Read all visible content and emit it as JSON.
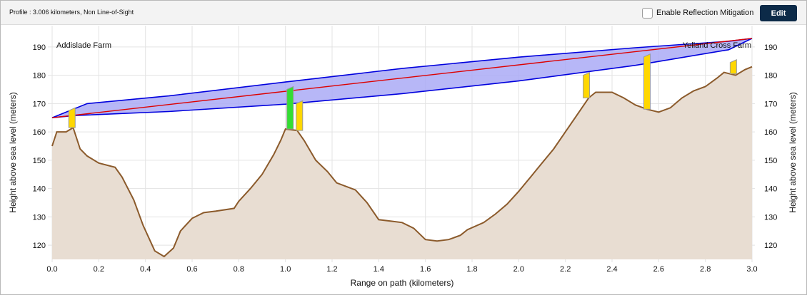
{
  "header": {
    "title": "Profile : 3.006 kilometers, Non Line-of-Sight",
    "mitigation_label": "Enable Reflection Mitigation",
    "mitigation_checked": false,
    "edit_label": "Edit"
  },
  "chart_data": {
    "type": "area",
    "xlabel": "Range on path (kilometers)",
    "ylabel": "Height above sea level (meters)",
    "ylabel_right": "Height above sea level (meters)",
    "xlim": [
      0.0,
      3.0
    ],
    "ylim": [
      115,
      196
    ],
    "x_ticks": [
      "0.0",
      "0.2",
      "0.4",
      "0.6",
      "0.8",
      "1.0",
      "1.2",
      "1.4",
      "1.6",
      "1.8",
      "2.0",
      "2.2",
      "2.4",
      "2.6",
      "2.8",
      "3.0"
    ],
    "y_ticks": [
      "120",
      "130",
      "140",
      "150",
      "160",
      "170",
      "180",
      "190"
    ],
    "grid": true,
    "annotations": {
      "left_site": "Addislade Farm",
      "right_site": "Yelland Cross Farm"
    },
    "colors": {
      "terrain_fill": "#e8ddd2",
      "terrain_line": "#8b5a2b",
      "fresnel_fill": "#aaaaf6",
      "fresnel_edge": "#0000dd",
      "path_line": "#dd0000"
    },
    "terrain": {
      "x": [
        0.0,
        0.02,
        0.06,
        0.09,
        0.12,
        0.15,
        0.2,
        0.27,
        0.3,
        0.35,
        0.39,
        0.44,
        0.48,
        0.52,
        0.55,
        0.6,
        0.65,
        0.7,
        0.78,
        0.8,
        0.85,
        0.9,
        0.95,
        0.98,
        1.0,
        1.05,
        1.08,
        1.13,
        1.18,
        1.22,
        1.3,
        1.35,
        1.4,
        1.45,
        1.5,
        1.55,
        1.6,
        1.65,
        1.7,
        1.75,
        1.78,
        1.85,
        1.9,
        1.95,
        2.0,
        2.05,
        2.1,
        2.15,
        2.2,
        2.25,
        2.3,
        2.33,
        2.4,
        2.45,
        2.5,
        2.55,
        2.6,
        2.65,
        2.7,
        2.75,
        2.8,
        2.85,
        2.88,
        2.93,
        2.97,
        3.0
      ],
      "y": [
        155,
        160,
        160,
        161.5,
        154,
        151.5,
        149,
        147.5,
        144,
        136,
        127,
        118,
        116,
        119,
        125,
        129.5,
        131.5,
        132,
        133,
        135.5,
        140,
        145,
        152,
        157,
        161,
        160.5,
        157,
        150,
        146,
        142,
        139.5,
        135,
        129,
        128.5,
        128,
        126,
        122,
        121.5,
        122,
        123.5,
        125.5,
        128,
        131,
        134.5,
        139,
        144,
        149,
        154,
        160,
        166,
        172,
        174,
        174,
        172,
        169.5,
        168,
        167,
        168.5,
        172,
        174.5,
        176,
        179,
        181,
        180,
        182,
        183
      ]
    },
    "path_line": {
      "x": [
        0.0,
        3.0
      ],
      "y": [
        165,
        193
      ]
    },
    "fresnel": {
      "upper": {
        "x": [
          0.0,
          0.15,
          0.5,
          1.0,
          1.5,
          2.0,
          2.5,
          2.9,
          3.0
        ],
        "y": [
          165,
          170,
          172.7,
          177.6,
          182.4,
          186.4,
          189.7,
          192,
          193
        ]
      },
      "lower": {
        "x": [
          0.0,
          0.1,
          0.5,
          1.0,
          1.5,
          2.0,
          2.5,
          2.9,
          3.0
        ],
        "y": [
          165,
          165.8,
          167.2,
          169.8,
          173.5,
          178,
          183.5,
          189,
          193
        ]
      }
    },
    "obstructions": [
      {
        "x": 0.085,
        "bottom": 161.5,
        "top": 168.5,
        "color": "#ffd700"
      },
      {
        "x": 1.02,
        "bottom": 161,
        "top": 176,
        "color": "#33dd33"
      },
      {
        "x": 1.06,
        "bottom": 160.5,
        "top": 171,
        "color": "#ffd700"
      },
      {
        "x": 2.29,
        "bottom": 172,
        "top": 181,
        "color": "#ffd700"
      },
      {
        "x": 2.55,
        "bottom": 168,
        "top": 187.5,
        "color": "#ffd700"
      },
      {
        "x": 2.92,
        "bottom": 180.5,
        "top": 185.5,
        "color": "#ffd700"
      }
    ]
  }
}
